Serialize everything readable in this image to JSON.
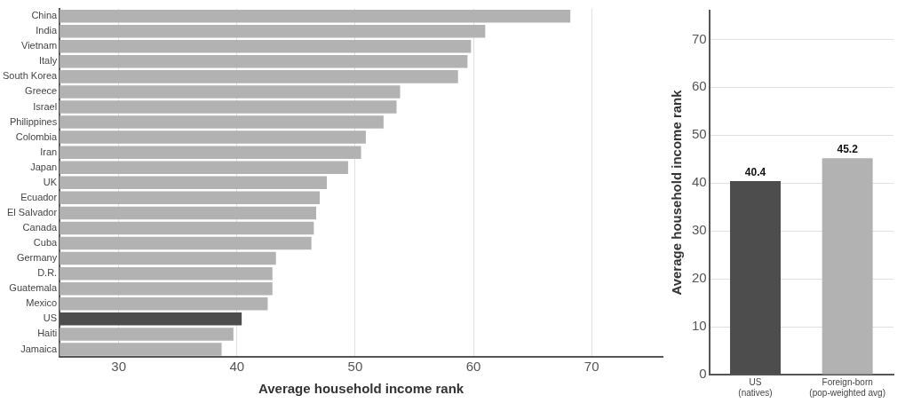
{
  "chart_data": [
    {
      "type": "bar",
      "orientation": "horizontal",
      "xlabel": "Average household income rank",
      "categories": [
        "China",
        "India",
        "Vietnam",
        "Italy",
        "South Korea",
        "Greece",
        "Israel",
        "Philippines",
        "Colombia",
        "Iran",
        "Japan",
        "UK",
        "Ecuador",
        "El Salvador",
        "Canada",
        "Cuba",
        "Germany",
        "D.R.",
        "Guatemala",
        "Mexico",
        "US",
        "Haiti",
        "Jamaica"
      ],
      "values": [
        68.2,
        61.0,
        59.8,
        59.5,
        58.7,
        53.8,
        53.5,
        52.4,
        50.9,
        50.5,
        49.4,
        47.6,
        47.0,
        46.7,
        46.5,
        46.3,
        43.3,
        43.0,
        43.0,
        42.6,
        40.4,
        39.7,
        38.7
      ],
      "colors": [
        "#b2b2b2",
        "#b2b2b2",
        "#b2b2b2",
        "#b2b2b2",
        "#b2b2b2",
        "#b2b2b2",
        "#b2b2b2",
        "#b2b2b2",
        "#b2b2b2",
        "#b2b2b2",
        "#b2b2b2",
        "#b2b2b2",
        "#b2b2b2",
        "#b2b2b2",
        "#b2b2b2",
        "#b2b2b2",
        "#b2b2b2",
        "#b2b2b2",
        "#b2b2b2",
        "#b2b2b2",
        "#4d4d4d",
        "#b2b2b2",
        "#b2b2b2"
      ],
      "xlim": [
        25,
        76
      ],
      "xticks": [
        30,
        40,
        50,
        60,
        70
      ],
      "grid": "x",
      "legend": false
    },
    {
      "type": "bar",
      "ylabel": "Average household income rank",
      "categories": [
        "US (natives)",
        "Foreign-born (pop-weighted avg)"
      ],
      "values": [
        40.4,
        45.2
      ],
      "colors": [
        "#4d4d4d",
        "#b2b2b2"
      ],
      "ylim": [
        0,
        76
      ],
      "yticks": [
        0,
        10,
        20,
        30,
        40,
        50,
        60,
        70
      ],
      "grid": "y",
      "data_labels": true,
      "legend": false
    }
  ]
}
